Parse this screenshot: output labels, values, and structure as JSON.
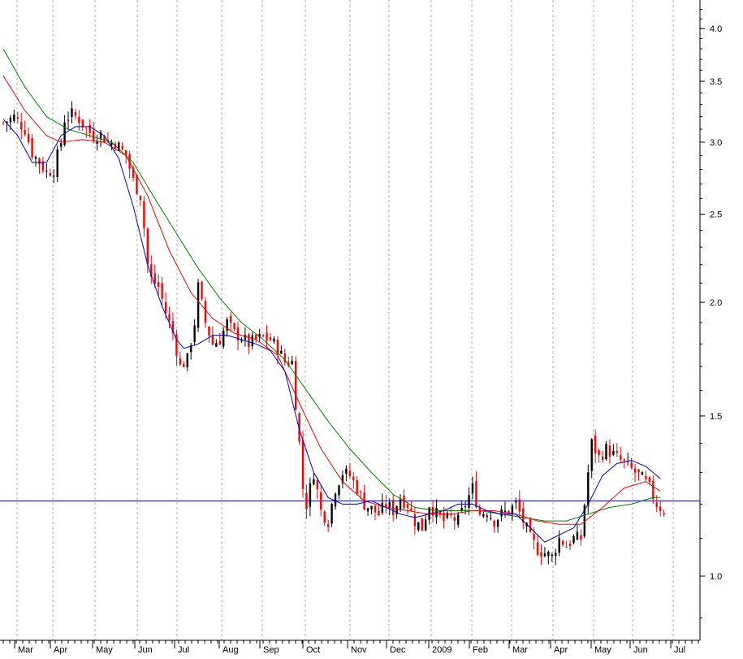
{
  "chart_data": {
    "type": "candlestick",
    "x_ticks": [
      "Mar",
      "Apr",
      "May",
      "Jun",
      "Jul",
      "Aug",
      "Sep",
      "Oct",
      "Nov",
      "Dec",
      "2009",
      "Feb",
      "Mar",
      "Apr",
      "May",
      "Jun",
      "Jul"
    ],
    "y_ticks": [
      1.0,
      1.5,
      2.0,
      2.5,
      3.0,
      3.5,
      4.0
    ],
    "ylim": [
      0.85,
      4.3
    ],
    "y_scale": "log",
    "grid": "vertical-dashed",
    "horizontal_line": {
      "value": 1.21,
      "color": "#0000cc"
    },
    "colors": {
      "up": "#000000",
      "down": "#ff0000",
      "ma_blue": "#0000cc",
      "ma_red": "#ff0000",
      "ma_green": "#008000"
    },
    "close_path": [
      [
        0,
        3.15
      ],
      [
        3,
        3.2
      ],
      [
        6,
        3.1
      ],
      [
        8,
        2.92
      ],
      [
        10,
        2.85
      ],
      [
        12,
        2.78
      ],
      [
        14,
        2.8
      ],
      [
        16,
        3.0
      ],
      [
        17,
        3.18
      ],
      [
        19,
        3.22
      ],
      [
        21,
        3.18
      ],
      [
        23,
        3.1
      ],
      [
        25,
        3.05
      ],
      [
        27,
        3.06
      ],
      [
        29,
        3.0
      ],
      [
        31,
        3.0
      ],
      [
        34,
        2.9
      ],
      [
        36,
        2.72
      ],
      [
        38,
        2.62
      ],
      [
        39,
        2.42
      ],
      [
        40,
        2.2
      ],
      [
        41,
        2.12
      ],
      [
        43,
        2.08
      ],
      [
        45,
        1.95
      ],
      [
        47,
        1.85
      ],
      [
        49,
        1.7
      ],
      [
        51,
        1.73
      ],
      [
        53,
        1.9
      ],
      [
        54,
        2.08
      ],
      [
        56,
        1.9
      ],
      [
        58,
        1.8
      ],
      [
        60,
        1.82
      ],
      [
        62,
        1.9
      ],
      [
        64,
        1.85
      ],
      [
        66,
        1.83
      ],
      [
        68,
        1.8
      ],
      [
        70,
        1.82
      ],
      [
        72,
        1.83
      ],
      [
        74,
        1.82
      ],
      [
        76,
        1.78
      ],
      [
        78,
        1.72
      ],
      [
        80,
        1.72
      ],
      [
        81,
        1.55
      ],
      [
        82,
        1.4
      ],
      [
        83,
        1.25
      ],
      [
        84,
        1.2
      ],
      [
        86,
        1.3
      ],
      [
        88,
        1.18
      ],
      [
        90,
        1.15
      ],
      [
        92,
        1.25
      ],
      [
        94,
        1.3
      ],
      [
        96,
        1.29
      ],
      [
        98,
        1.25
      ],
      [
        100,
        1.2
      ],
      [
        104,
        1.17
      ],
      [
        106,
        1.2
      ],
      [
        108,
        1.18
      ],
      [
        110,
        1.22
      ],
      [
        112,
        1.2
      ],
      [
        114,
        1.15
      ],
      [
        116,
        1.13
      ],
      [
        118,
        1.2
      ],
      [
        120,
        1.17
      ],
      [
        122,
        1.15
      ],
      [
        124,
        1.16
      ],
      [
        126,
        1.15
      ],
      [
        128,
        1.2
      ],
      [
        130,
        1.25
      ],
      [
        132,
        1.17
      ],
      [
        134,
        1.18
      ],
      [
        136,
        1.15
      ],
      [
        138,
        1.17
      ],
      [
        140,
        1.18
      ],
      [
        142,
        1.2
      ],
      [
        144,
        1.15
      ],
      [
        146,
        1.1
      ],
      [
        148,
        1.07
      ],
      [
        150,
        1.06
      ],
      [
        152,
        1.05
      ],
      [
        154,
        1.1
      ],
      [
        156,
        1.08
      ],
      [
        158,
        1.1
      ],
      [
        160,
        1.1
      ],
      [
        161,
        1.2
      ],
      [
        162,
        1.3
      ],
      [
        163,
        1.4
      ],
      [
        165,
        1.35
      ],
      [
        167,
        1.38
      ],
      [
        169,
        1.36
      ],
      [
        171,
        1.34
      ],
      [
        173,
        1.32
      ],
      [
        175,
        1.3
      ],
      [
        177,
        1.28
      ],
      [
        179,
        1.25
      ],
      [
        181,
        1.2
      ],
      [
        183,
        1.18
      ]
    ],
    "ma_blue": [
      [
        0,
        3.18
      ],
      [
        4,
        3.05
      ],
      [
        8,
        2.85
      ],
      [
        12,
        2.85
      ],
      [
        16,
        3.05
      ],
      [
        20,
        3.12
      ],
      [
        24,
        3.12
      ],
      [
        28,
        3.05
      ],
      [
        32,
        2.88
      ],
      [
        36,
        2.55
      ],
      [
        40,
        2.2
      ],
      [
        44,
        1.98
      ],
      [
        48,
        1.82
      ],
      [
        50,
        1.78
      ],
      [
        54,
        1.8
      ],
      [
        58,
        1.84
      ],
      [
        62,
        1.84
      ],
      [
        66,
        1.82
      ],
      [
        70,
        1.8
      ],
      [
        74,
        1.77
      ],
      [
        78,
        1.68
      ],
      [
        82,
        1.45
      ],
      [
        86,
        1.3
      ],
      [
        90,
        1.22
      ],
      [
        94,
        1.2
      ],
      [
        98,
        1.2
      ],
      [
        102,
        1.21
      ],
      [
        106,
        1.19
      ],
      [
        110,
        1.17
      ],
      [
        114,
        1.16
      ],
      [
        118,
        1.17
      ],
      [
        122,
        1.18
      ],
      [
        126,
        1.2
      ],
      [
        130,
        1.2
      ],
      [
        134,
        1.18
      ],
      [
        138,
        1.17
      ],
      [
        142,
        1.17
      ],
      [
        146,
        1.13
      ],
      [
        150,
        1.09
      ],
      [
        154,
        1.11
      ],
      [
        158,
        1.13
      ],
      [
        162,
        1.2
      ],
      [
        166,
        1.29
      ],
      [
        170,
        1.33
      ],
      [
        174,
        1.34
      ],
      [
        178,
        1.32
      ],
      [
        182,
        1.28
      ]
    ],
    "ma_red": [
      [
        0,
        3.55
      ],
      [
        6,
        3.25
      ],
      [
        12,
        3.05
      ],
      [
        16,
        3.0
      ],
      [
        22,
        3.02
      ],
      [
        28,
        3.0
      ],
      [
        34,
        2.9
      ],
      [
        40,
        2.62
      ],
      [
        46,
        2.28
      ],
      [
        52,
        2.05
      ],
      [
        58,
        1.92
      ],
      [
        64,
        1.85
      ],
      [
        70,
        1.82
      ],
      [
        76,
        1.75
      ],
      [
        82,
        1.55
      ],
      [
        88,
        1.38
      ],
      [
        94,
        1.27
      ],
      [
        100,
        1.21
      ],
      [
        106,
        1.19
      ],
      [
        112,
        1.18
      ],
      [
        118,
        1.17
      ],
      [
        124,
        1.17
      ],
      [
        130,
        1.18
      ],
      [
        136,
        1.18
      ],
      [
        142,
        1.17
      ],
      [
        148,
        1.15
      ],
      [
        154,
        1.14
      ],
      [
        160,
        1.14
      ],
      [
        166,
        1.19
      ],
      [
        172,
        1.25
      ],
      [
        178,
        1.27
      ],
      [
        182,
        1.24
      ]
    ],
    "ma_green": [
      [
        0,
        3.8
      ],
      [
        6,
        3.45
      ],
      [
        12,
        3.2
      ],
      [
        18,
        3.1
      ],
      [
        24,
        3.05
      ],
      [
        30,
        3.0
      ],
      [
        36,
        2.85
      ],
      [
        42,
        2.6
      ],
      [
        48,
        2.38
      ],
      [
        54,
        2.18
      ],
      [
        60,
        2.02
      ],
      [
        66,
        1.9
      ],
      [
        72,
        1.82
      ],
      [
        78,
        1.73
      ],
      [
        84,
        1.6
      ],
      [
        90,
        1.48
      ],
      [
        96,
        1.38
      ],
      [
        102,
        1.3
      ],
      [
        108,
        1.23
      ],
      [
        114,
        1.19
      ],
      [
        120,
        1.18
      ],
      [
        126,
        1.18
      ],
      [
        132,
        1.18
      ],
      [
        138,
        1.17
      ],
      [
        144,
        1.16
      ],
      [
        150,
        1.15
      ],
      [
        156,
        1.15
      ],
      [
        162,
        1.17
      ],
      [
        168,
        1.19
      ],
      [
        174,
        1.2
      ],
      [
        180,
        1.22
      ],
      [
        182,
        1.22
      ]
    ]
  }
}
